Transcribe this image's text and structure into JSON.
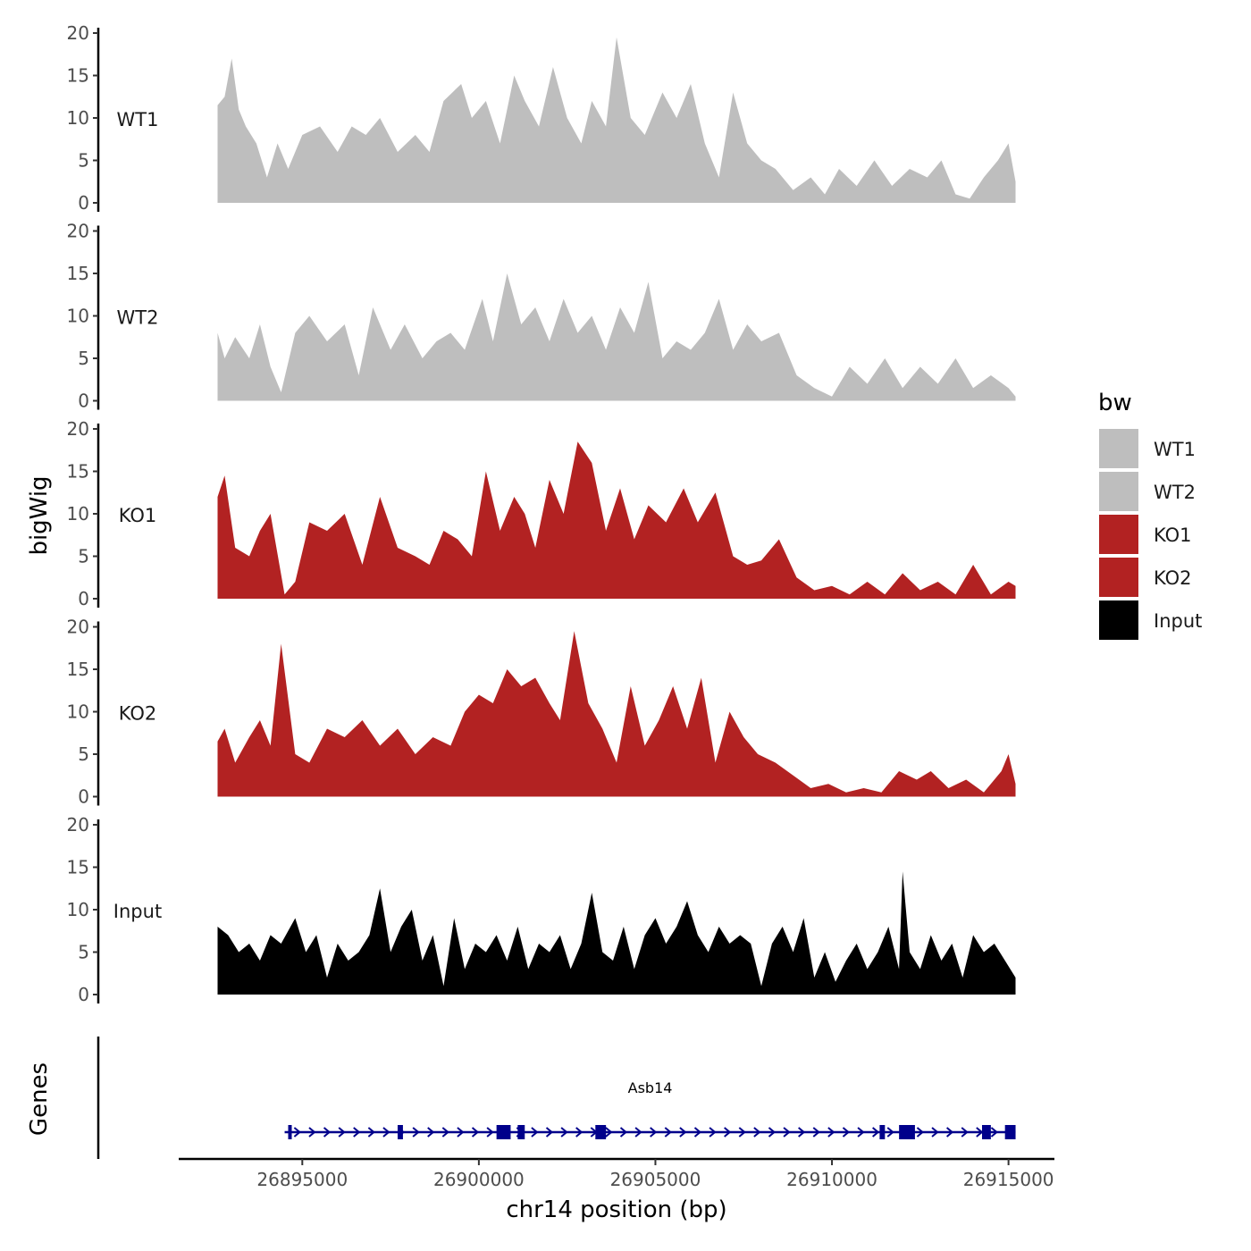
{
  "chart_data": {
    "type": "area",
    "ylabel": "bigWig",
    "xlabel": "chr14 position (bp)",
    "xlim": [
      26891500,
      26916300
    ],
    "x_ticks": [
      26895000,
      26900000,
      26905000,
      26910000,
      26915000
    ],
    "x_tick_labels": [
      "26895000",
      "26900000",
      "26905000",
      "26910000",
      "26915000"
    ],
    "ylim": [
      0,
      20
    ],
    "y_ticks": [
      0,
      5,
      10,
      15,
      20
    ],
    "y_tick_labels": [
      "0",
      "5",
      "10",
      "15",
      "20"
    ],
    "legend": {
      "title": "bw",
      "position": "right",
      "entries": [
        {
          "label": "WT1",
          "color": "#bebebe"
        },
        {
          "label": "WT2",
          "color": "#bebebe"
        },
        {
          "label": "KO1",
          "color": "#b22222"
        },
        {
          "label": "KO2",
          "color": "#b22222"
        },
        {
          "label": "Input",
          "color": "#000000"
        }
      ]
    },
    "series": [
      {
        "name": "WT1",
        "color": "#bebebe",
        "x": [
          26892600,
          26892800,
          26893000,
          26893200,
          26893400,
          26893700,
          26894000,
          26894300,
          26894600,
          26895000,
          26895500,
          26896000,
          26896400,
          26896800,
          26897200,
          26897700,
          26898200,
          26898600,
          26899000,
          26899500,
          26899800,
          26900200,
          26900600,
          26901000,
          26901300,
          26901700,
          26902100,
          26902500,
          26902900,
          26903200,
          26903600,
          26903900,
          26904300,
          26904700,
          26905200,
          26905600,
          26906000,
          26906400,
          26906800,
          26907200,
          26907600,
          26908000,
          26908400,
          26908900,
          26909400,
          26909800,
          26910200,
          26910700,
          26911200,
          26911700,
          26912200,
          26912700,
          26913100,
          26913500,
          26913900,
          26914300,
          26914700,
          26915000,
          26915200
        ],
        "values": [
          11.5,
          12.5,
          17,
          11,
          9,
          7,
          3,
          7,
          4,
          8,
          9,
          6,
          9,
          8,
          10,
          6,
          8,
          6,
          12,
          14,
          10,
          12,
          7,
          15,
          12,
          9,
          16,
          10,
          7,
          12,
          9,
          19.5,
          10,
          8,
          13,
          10,
          14,
          7,
          3,
          13,
          7,
          5,
          4,
          1.5,
          3,
          1,
          4,
          2,
          5,
          2,
          4,
          3,
          5,
          1,
          0.5,
          3,
          5,
          7,
          2.5
        ]
      },
      {
        "name": "WT2",
        "color": "#bebebe",
        "x": [
          26892600,
          26892800,
          26893100,
          26893500,
          26893800,
          26894100,
          26894400,
          26894800,
          26895200,
          26895700,
          26896200,
          26896600,
          26897000,
          26897500,
          26897900,
          26898400,
          26898800,
          26899200,
          26899600,
          26900100,
          26900400,
          26900800,
          26901200,
          26901600,
          26902000,
          26902400,
          26902800,
          26903200,
          26903600,
          26904000,
          26904400,
          26904800,
          26905200,
          26905600,
          26906000,
          26906400,
          26906800,
          26907200,
          26907600,
          26908000,
          26908500,
          26909000,
          26909500,
          26910000,
          26910500,
          26911000,
          26911500,
          26912000,
          26912500,
          26913000,
          26913500,
          26914000,
          26914500,
          26915000,
          26915200
        ],
        "values": [
          8,
          5,
          7.5,
          5,
          9,
          4,
          1,
          8,
          10,
          7,
          9,
          3,
          11,
          6,
          9,
          5,
          7,
          8,
          6,
          12,
          7,
          15,
          9,
          11,
          7,
          12,
          8,
          10,
          6,
          11,
          8,
          14,
          5,
          7,
          6,
          8,
          12,
          6,
          9,
          7,
          8,
          3,
          1.5,
          0.5,
          4,
          2,
          5,
          1.5,
          4,
          2,
          5,
          1.5,
          3,
          1.5,
          0.5
        ]
      },
      {
        "name": "KO1",
        "color": "#b22222",
        "x": [
          26892600,
          26892800,
          26893100,
          26893500,
          26893800,
          26894100,
          26894500,
          26894800,
          26895200,
          26895700,
          26896200,
          26896700,
          26897200,
          26897700,
          26898200,
          26898600,
          26899000,
          26899400,
          26899800,
          26900200,
          26900600,
          26901000,
          26901300,
          26901600,
          26902000,
          26902400,
          26902800,
          26903200,
          26903600,
          26904000,
          26904400,
          26904800,
          26905300,
          26905800,
          26906200,
          26906700,
          26907200,
          26907600,
          26908000,
          26908500,
          26909000,
          26909500,
          26910000,
          26910500,
          26911000,
          26911500,
          26912000,
          26912500,
          26913000,
          26913500,
          26914000,
          26914500,
          26915000,
          26915200
        ],
        "values": [
          12,
          14.5,
          6,
          5,
          8,
          10,
          0.5,
          2,
          9,
          8,
          10,
          4,
          12,
          6,
          5,
          4,
          8,
          7,
          5,
          15,
          8,
          12,
          10,
          6,
          14,
          10,
          18.5,
          16,
          8,
          13,
          7,
          11,
          9,
          13,
          9,
          12.5,
          5,
          4,
          4.5,
          7,
          2.5,
          1,
          1.5,
          0.5,
          2,
          0.5,
          3,
          1,
          2,
          0.5,
          4,
          0.5,
          2,
          1.5
        ]
      },
      {
        "name": "KO2",
        "color": "#b22222",
        "x": [
          26892600,
          26892800,
          26893100,
          26893500,
          26893800,
          26894100,
          26894400,
          26894800,
          26895200,
          26895700,
          26896200,
          26896700,
          26897200,
          26897700,
          26898200,
          26898700,
          26899200,
          26899600,
          26900000,
          26900400,
          26900800,
          26901200,
          26901600,
          26902000,
          26902300,
          26902700,
          26903100,
          26903500,
          26903900,
          26904300,
          26904700,
          26905100,
          26905500,
          26905900,
          26906300,
          26906700,
          26907100,
          26907500,
          26907900,
          26908400,
          26908900,
          26909400,
          26909900,
          26910400,
          26910900,
          26911400,
          26911900,
          26912400,
          26912800,
          26913300,
          26913800,
          26914300,
          26914800,
          26915000,
          26915200
        ],
        "values": [
          6.5,
          8,
          4,
          7,
          9,
          6,
          18,
          5,
          4,
          8,
          7,
          9,
          6,
          8,
          5,
          7,
          6,
          10,
          12,
          11,
          15,
          13,
          14,
          11,
          9,
          19.5,
          11,
          8,
          4,
          13,
          6,
          9,
          13,
          8,
          14,
          4,
          10,
          7,
          5,
          4,
          2.5,
          1,
          1.5,
          0.5,
          1,
          0.5,
          3,
          2,
          3,
          1,
          2,
          0.5,
          3,
          5,
          1.5
        ]
      },
      {
        "name": "Input",
        "color": "#000000",
        "x": [
          26892600,
          26892900,
          26893200,
          26893500,
          26893800,
          26894100,
          26894400,
          26894800,
          26895100,
          26895400,
          26895700,
          26896000,
          26896300,
          26896600,
          26896900,
          26897200,
          26897500,
          26897800,
          26898100,
          26898400,
          26898700,
          26899000,
          26899300,
          26899600,
          26899900,
          26900200,
          26900500,
          26900800,
          26901100,
          26901400,
          26901700,
          26902000,
          26902300,
          26902600,
          26902900,
          26903200,
          26903500,
          26903800,
          26904100,
          26904400,
          26904700,
          26905000,
          26905300,
          26905600,
          26905900,
          26906200,
          26906500,
          26906800,
          26907100,
          26907400,
          26907700,
          26908000,
          26908300,
          26908600,
          26908900,
          26909200,
          26909500,
          26909800,
          26910100,
          26910400,
          26910700,
          26911000,
          26911300,
          26911600,
          26911900,
          26912000,
          26912200,
          26912500,
          26912800,
          26913100,
          26913400,
          26913700,
          26914000,
          26914300,
          26914600,
          26914900,
          26915200
        ],
        "values": [
          8,
          7,
          5,
          6,
          4,
          7,
          6,
          9,
          5,
          7,
          2,
          6,
          4,
          5,
          7,
          12.5,
          5,
          8,
          10,
          4,
          7,
          1,
          9,
          3,
          6,
          5,
          7,
          4,
          8,
          3,
          6,
          5,
          7,
          3,
          6,
          12,
          5,
          4,
          8,
          3,
          7,
          9,
          6,
          8,
          11,
          7,
          5,
          8,
          6,
          7,
          6,
          1,
          6,
          8,
          5,
          9,
          2,
          5,
          1.5,
          4,
          6,
          3,
          5,
          8,
          3,
          14.5,
          5,
          3,
          7,
          4,
          6,
          2,
          7,
          5,
          6,
          4,
          2
        ]
      }
    ],
    "genes_track": {
      "label": "Genes",
      "gene_name": "Asb14",
      "strand": "+",
      "color": "#00008b",
      "gene_start": 26894500,
      "gene_end": 26915200,
      "exons": [
        [
          26894600,
          26894700
        ],
        [
          26897700,
          26897850
        ],
        [
          26900500,
          26900900
        ],
        [
          26901100,
          26901300
        ],
        [
          26903300,
          26903600
        ],
        [
          26911350,
          26911500
        ],
        [
          26911900,
          26912350
        ],
        [
          26914250,
          26914500
        ],
        [
          26914900,
          26915200
        ]
      ]
    }
  }
}
